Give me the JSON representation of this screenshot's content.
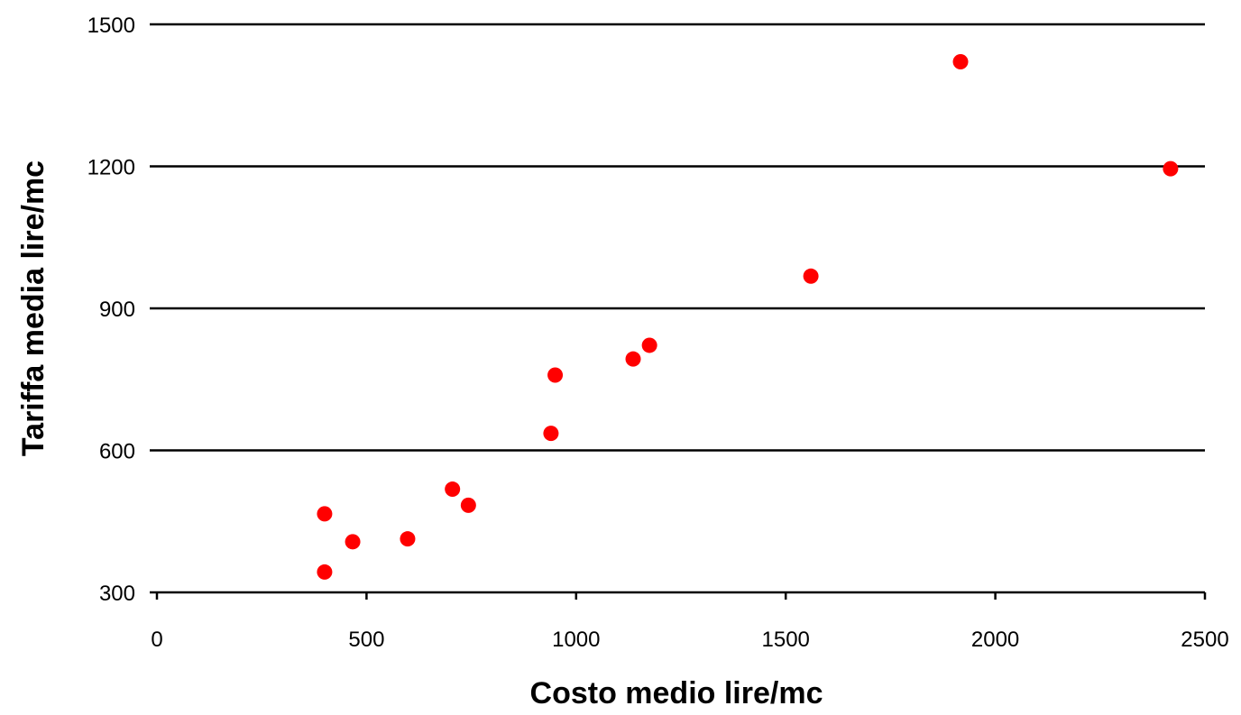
{
  "chart_data": {
    "type": "scatter",
    "title": "",
    "xlabel": "Costo medio lire/mc",
    "ylabel": "Tariffa media lire/mc",
    "xlim": [
      0,
      2500
    ],
    "ylim": [
      300,
      1500
    ],
    "x_ticks": [
      0,
      500,
      1000,
      1500,
      2000,
      2500
    ],
    "y_ticks": [
      300,
      600,
      900,
      1200,
      1500
    ],
    "grid": "horizontal",
    "legend": "none",
    "marker_color": "#ff0000",
    "series": [
      {
        "points": [
          {
            "x": 400,
            "y": 466
          },
          {
            "x": 400,
            "y": 343
          },
          {
            "x": 467,
            "y": 407
          },
          {
            "x": 598,
            "y": 413
          },
          {
            "x": 705,
            "y": 518
          },
          {
            "x": 743,
            "y": 484
          },
          {
            "x": 940,
            "y": 636
          },
          {
            "x": 950,
            "y": 759
          },
          {
            "x": 1136,
            "y": 793
          },
          {
            "x": 1175,
            "y": 822
          },
          {
            "x": 1560,
            "y": 968
          },
          {
            "x": 1917,
            "y": 1421
          },
          {
            "x": 2418,
            "y": 1195
          }
        ]
      }
    ]
  }
}
